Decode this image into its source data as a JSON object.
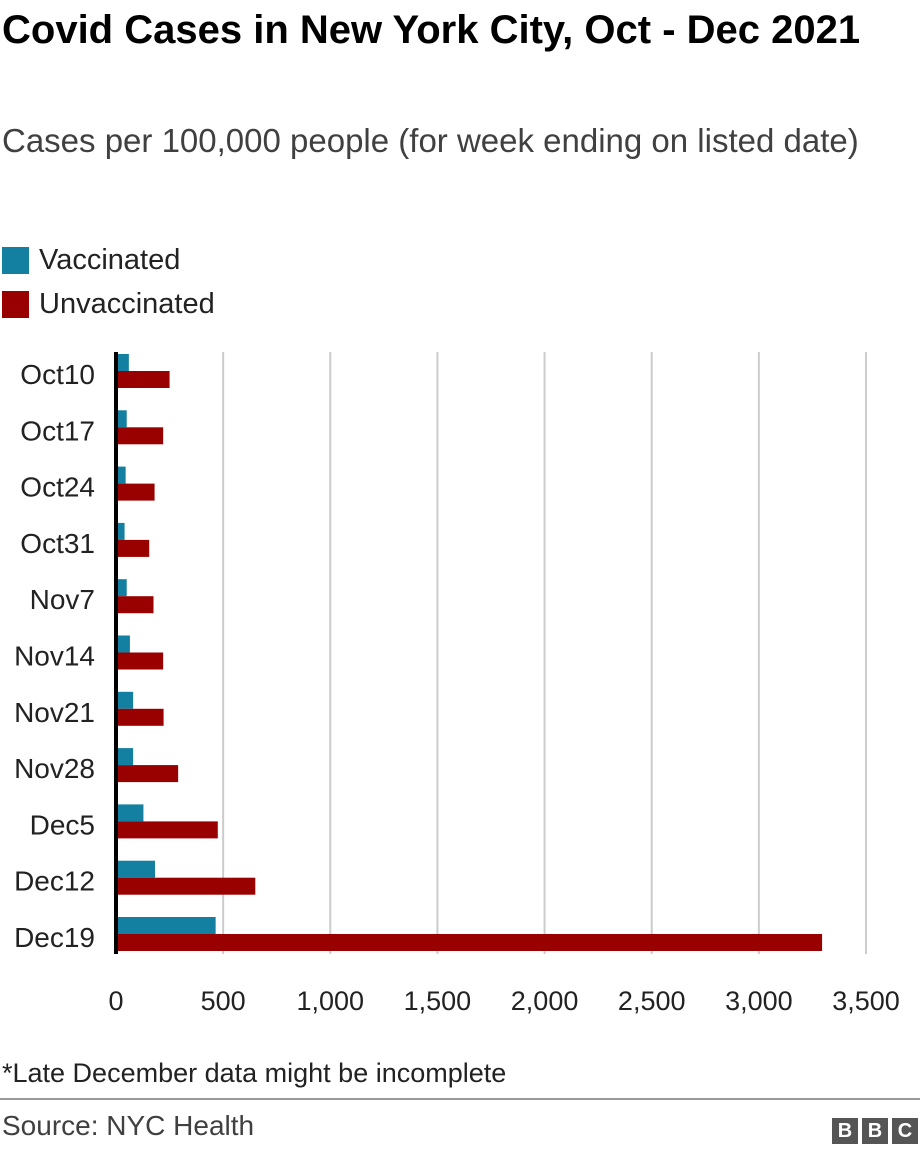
{
  "chart_data": {
    "type": "bar",
    "orientation": "horizontal",
    "title": "Covid Cases in New York City, Oct - Dec 2021",
    "subtitle": "Cases per 100,000 people (for week ending on listed date)",
    "categories": [
      "Oct10",
      "Oct17",
      "Oct24",
      "Oct31",
      "Nov7",
      "Nov14",
      "Nov21",
      "Nov28",
      "Dec5",
      "Dec12",
      "Dec19"
    ],
    "series": [
      {
        "name": "Vaccinated",
        "color": "#1380a1",
        "values": [
          60,
          50,
          45,
          40,
          50,
          65,
          80,
          80,
          128,
          182,
          465
        ]
      },
      {
        "name": "Unvaccinated",
        "color": "#990000",
        "values": [
          250,
          220,
          180,
          155,
          175,
          220,
          222,
          290,
          475,
          650,
          3295
        ]
      }
    ],
    "xlim": [
      0,
      3500
    ],
    "xticks": [
      0,
      500,
      1000,
      1500,
      2000,
      2500,
      3000,
      3500
    ],
    "xtick_labels": [
      "0",
      "500",
      "1,000",
      "1,500",
      "2,000",
      "2,500",
      "3,000",
      "3,500"
    ],
    "grid": "vertical",
    "legend": "top-left"
  },
  "note": "*Late December data might be incomplete",
  "source": "Source: NYC Health",
  "logo": [
    "B",
    "B",
    "C"
  ]
}
